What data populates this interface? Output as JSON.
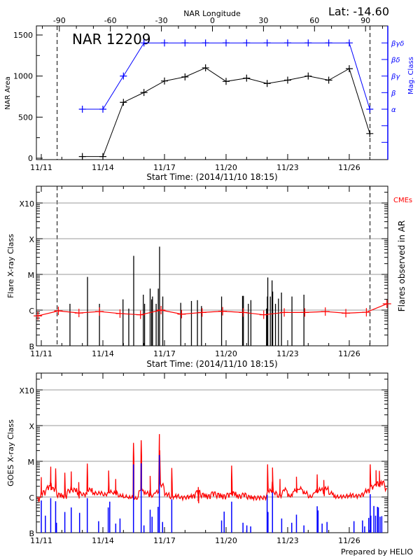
{
  "colors": {
    "axis": "#000000",
    "grid": "#999999",
    "nar_area": "#000000",
    "mag_class": "#0000ff",
    "cme": "#ff0000",
    "goes_long": "#ff0000",
    "goes_short": "#0000ff",
    "flare": "#000000"
  },
  "header": {
    "latitude": "Lat: -14.60",
    "region_title": "NAR 12209"
  },
  "footer": {
    "credit": "Prepared by HELIO"
  },
  "chart_data": [
    {
      "type": "line",
      "title": "NAR 12209",
      "xlabel": "Start Time: (2014/11/10 18:15)",
      "x_tick_labels": [
        "11/11",
        "11/14",
        "11/17",
        "11/20",
        "11/23",
        "11/26"
      ],
      "x_ticks": [
        "11/11 00:00",
        "11/14 00:00",
        "11/17 00:00",
        "11/20 00:00",
        "11/23 00:00",
        "11/26 00:00"
      ],
      "top_axis": {
        "label": "NAR Longitude",
        "ticks": [
          "-90",
          "-60",
          "-30",
          "0",
          "30",
          "60",
          "90"
        ]
      },
      "ylabel": "NAR Area",
      "yticks": [
        "0",
        "500",
        "1000",
        "1500"
      ],
      "ylim": [
        0,
        1600
      ],
      "y2label": "Mag. Class",
      "y2_tick_labels": [
        "α",
        "β",
        "βγ",
        "βδ",
        "βγδ"
      ],
      "limb_markers": [
        "11/11 18:30",
        "11/27 00:15"
      ],
      "series": [
        {
          "key": "area",
          "x": [
            "11/13 00:00",
            "11/14 00:00",
            "11/15 00:00",
            "11/16 00:00",
            "11/17 00:00",
            "11/18 00:00",
            "11/19 00:00",
            "11/20 00:00",
            "11/21 00:00",
            "11/22 00:00",
            "11/23 00:00",
            "11/24 00:00",
            "11/25 00:00",
            "11/26 00:00",
            "11/27 00:00"
          ],
          "values": [
            20,
            20,
            680,
            800,
            940,
            990,
            1100,
            935,
            975,
            910,
            950,
            1000,
            950,
            1090,
            300
          ]
        },
        {
          "key": "mag_class",
          "x": [
            "11/13 00:00",
            "11/14 00:00",
            "11/15 00:00",
            "11/16 00:00",
            "11/17 00:00",
            "11/18 00:00",
            "11/19 00:00",
            "11/20 00:00",
            "11/21 00:00",
            "11/22 00:00",
            "11/23 00:00",
            "11/24 00:00",
            "11/25 00:00",
            "11/26 00:00",
            "11/27 00:00"
          ],
          "values": [
            "α",
            "α",
            "βγ",
            "βγδ",
            "βγδ",
            "βγδ",
            "βγδ",
            "βγδ",
            "βγδ",
            "βγδ",
            "βγδ",
            "βγδ",
            "βγδ",
            "βγδ",
            "α"
          ]
        }
      ]
    },
    {
      "type": "bar",
      "xlabel": "Start Time: (2014/11/10 18:15)",
      "x_tick_labels": [
        "11/11",
        "11/14",
        "11/17",
        "11/20",
        "11/23",
        "11/26"
      ],
      "ylabel": "Flare X-ray Class",
      "y_scale": "log",
      "yticks": [
        "B",
        "C",
        "M",
        "X",
        "X10"
      ],
      "ytick_values": [
        1e-07,
        1e-06,
        1e-05,
        0.0001,
        0.001
      ],
      "grid": true,
      "y2label": "Flares observed in AR",
      "legend": {
        "label": "CMEs",
        "placement": "top-right"
      },
      "limb_markers": [
        "11/11 18:30",
        "11/27 00:15"
      ],
      "flares": [
        [
          "11/12 09:30",
          1.5e-06
        ],
        [
          "11/13 06:00",
          8.5e-06
        ],
        [
          "11/13 20:00",
          1.5e-06
        ],
        [
          "11/14 23:30",
          2e-06
        ],
        [
          "11/15 06:15",
          1.1e-06
        ],
        [
          "11/15 12:00",
          3.3e-05
        ],
        [
          "11/15 23:15",
          2.7e-06
        ],
        [
          "11/16 00:45",
          1.5e-06
        ],
        [
          "11/16 07:15",
          4e-06
        ],
        [
          "11/16 09:00",
          2e-06
        ],
        [
          "11/16 10:00",
          2.4e-06
        ],
        [
          "11/16 14:15",
          1.5e-06
        ],
        [
          "11/16 16:45",
          4e-06
        ],
        [
          "11/16 18:15",
          6e-05
        ],
        [
          "11/16 22:00",
          2.4e-06
        ],
        [
          "11/17 19:00",
          1.6e-06
        ],
        [
          "11/18 07:30",
          1.8e-06
        ],
        [
          "11/18 14:30",
          1.9e-06
        ],
        [
          "11/18 19:15",
          1.3e-06
        ],
        [
          "11/19 18:45",
          2.4e-06
        ],
        [
          "11/20 19:15",
          2.5e-06
        ],
        [
          "11/20 20:15",
          2.5e-06
        ],
        [
          "11/21 02:00",
          1.5e-06
        ],
        [
          "11/21 05:00",
          1.9e-06
        ],
        [
          "11/21 23:15",
          1.1e-06
        ],
        [
          "11/22 00:15",
          2.4e-06
        ],
        [
          "11/22 00:45",
          8.2e-06
        ],
        [
          "11/22 03:45",
          2.4e-06
        ],
        [
          "11/22 05:45",
          6.8e-06
        ],
        [
          "11/22 06:30",
          3.3e-06
        ],
        [
          "11/22 09:45",
          1.5e-06
        ],
        [
          "11/22 13:15",
          2.1e-06
        ],
        [
          "11/22 16:45",
          3.1e-06
        ],
        [
          "11/23 05:00",
          2.4e-06
        ],
        [
          "11/23 19:00",
          2.7e-06
        ]
      ],
      "cmes": {
        "x": [
          "11/10 20:00",
          "11/11 20:00",
          "11/12 20:00",
          "11/13 20:00",
          "11/14 20:00",
          "11/15 20:00",
          "11/16 20:00",
          "11/17 20:00",
          "11/18 20:00",
          "11/19 20:00",
          "11/20 20:00",
          "11/21 20:00",
          "11/22 20:00",
          "11/23 20:00",
          "11/24 20:00",
          "11/25 20:00",
          "11/26 20:00",
          "11/27 20:00"
        ],
        "values": [
          6.9e-07,
          9.5e-07,
          8.3e-07,
          9.1e-07,
          8e-07,
          7.4e-07,
          1e-06,
          7.7e-07,
          8.6e-07,
          9.3e-07,
          8.6e-07,
          7.4e-07,
          8.6e-07,
          8.6e-07,
          9.1e-07,
          8.2e-07,
          8.7e-07,
          1.5e-06
        ]
      }
    },
    {
      "type": "line",
      "ylabel": "GOES X-ray Class",
      "x_tick_labels": [
        "11/11",
        "11/14",
        "11/17",
        "11/20",
        "11/23",
        "11/26"
      ],
      "y_scale": "log",
      "yticks": [
        "B",
        "C",
        "M",
        "X",
        "X10"
      ],
      "ytick_values": [
        1e-07,
        1e-06,
        1e-05,
        0.0001,
        0.001
      ],
      "grid": true,
      "series": [
        {
          "key": "long_channel_background",
          "start": "11/10 18:15",
          "interval_hours": 6,
          "values": [
            8.5e-07,
            1.3e-06,
            1.8e-06,
            1.6e-06,
            1.1e-06,
            1e-06,
            1.4e-06,
            1.5e-06,
            1.2e-06,
            1.1e-06,
            1.5e-06,
            1.2e-06,
            1.2e-06,
            1.1e-06,
            1.3e-06,
            1.2e-06,
            1e-06,
            9.5e-07,
            9e-07,
            8.5e-07,
            1.5e-06,
            1.2e-06,
            1e-06,
            1.3e-06,
            2e-06,
            1.1e-06,
            9.5e-07,
            1e-06,
            9e-07,
            9.5e-07,
            1e-06,
            1.3e-06,
            1.1e-06,
            1e-06,
            1.2e-06,
            1.1e-06,
            1e-06,
            1.1e-06,
            1.2e-06,
            1e-06,
            1.1e-06,
            9.5e-07,
            9e-07,
            9e-07,
            9e-07,
            1.4e-06,
            1.2e-06,
            1e-06,
            1.5e-06,
            1e-06,
            1.4e-06,
            1.6e-06,
            1.2e-06,
            9.5e-07,
            1.3e-06,
            1.5e-06,
            1.6e-06,
            1.2e-06,
            9.5e-07,
            9.5e-07,
            1e-06,
            1.05e-06,
            1e-06,
            1.1e-06,
            1.4e-06,
            1.8e-06,
            2.3e-06,
            2.4e-06,
            1.5e-06
          ]
        },
        {
          "key": "long_channel_peaks",
          "points": [
            [
              "11/11 00:00",
              3.6e-06
            ],
            [
              "11/11 11:00",
              7.1e-06
            ],
            [
              "11/11 16:45",
              6.3e-06
            ],
            [
              "11/12 03:30",
              4.8e-06
            ],
            [
              "11/12 11:00",
              5.2e-06
            ],
            [
              "11/12 19:45",
              2.6e-06
            ],
            [
              "11/13 05:45",
              8.6e-06
            ],
            [
              "11/14 06:45",
              5.5e-06
            ],
            [
              "11/14 15:00",
              3.2e-06
            ],
            [
              "11/15 11:45",
              3.3e-05
            ],
            [
              "11/15 20:45",
              3.9e-05
            ],
            [
              "11/16 07:15",
              3.9e-06
            ],
            [
              "11/16 18:00",
              5.8e-05
            ],
            [
              "11/17 08:30",
              6.5e-06
            ],
            [
              "11/18 15:30",
              1.9e-06
            ],
            [
              "11/20 06:30",
              7.6e-06
            ],
            [
              "11/22 00:30",
              8.2e-06
            ],
            [
              "11/22 06:15",
              6.7e-06
            ],
            [
              "11/22 15:00",
              3.2e-06
            ],
            [
              "11/23 10:15",
              3.7e-06
            ],
            [
              "11/24 10:30",
              4.3e-06
            ],
            [
              "11/24 18:15",
              3e-06
            ],
            [
              "11/27 00:30",
              8.2e-06
            ],
            [
              "11/27 07:15",
              5.6e-06
            ],
            [
              "11/27 11:15",
              5.4e-06
            ]
          ]
        },
        {
          "key": "short_channel_peaks",
          "points": [
            [
              "11/11 00:00",
              8e-07
            ],
            [
              "11/11 04:45",
              3e-07
            ],
            [
              "11/11 11:00",
              9.3e-07
            ],
            [
              "11/11 16:45",
              7.6e-07
            ],
            [
              "11/11 17:45",
              1.9e-07
            ],
            [
              "11/12 03:30",
              3.8e-07
            ],
            [
              "11/12 11:00",
              5.1e-07
            ],
            [
              "11/12 20:45",
              3.6e-07
            ],
            [
              "11/13 05:45",
              9.3e-07
            ],
            [
              "11/13 19:00",
              2.1e-07
            ],
            [
              "11/14 06:15",
              5.1e-07
            ],
            [
              "11/14 08:00",
              7.4e-07
            ],
            [
              "11/14 15:00",
              1.8e-07
            ],
            [
              "11/14 20:00",
              2.5e-07
            ],
            [
              "11/15 11:45",
              8.2e-06
            ],
            [
              "11/15 20:45",
              8.8e-06
            ],
            [
              "11/16 00:00",
              1.6e-07
            ],
            [
              "11/16 07:15",
              4.4e-07
            ],
            [
              "11/16 09:30",
              2.8e-07
            ],
            [
              "11/16 16:30",
              5.3e-07
            ],
            [
              "11/16 18:00",
              1.5e-05
            ],
            [
              "11/16 21:45",
              2e-07
            ],
            [
              "11/17 08:30",
              8.6e-07
            ],
            [
              "11/19 18:45",
              2.2e-07
            ],
            [
              "11/19 21:45",
              3.9e-07
            ],
            [
              "11/20 06:30",
              7.4e-07
            ],
            [
              "11/20 19:45",
              1.9e-07
            ],
            [
              "11/21 00:15",
              1.6e-07
            ],
            [
              "11/21 04:45",
              1.5e-07
            ],
            [
              "11/22 00:00",
              1.16e-06
            ],
            [
              "11/22 01:00",
              3.8e-07
            ],
            [
              "11/22 06:15",
              1.35e-06
            ],
            [
              "11/22 17:00",
              2.5e-07
            ],
            [
              "11/23 04:45",
              1.9e-07
            ],
            [
              "11/23 10:15",
              3.2e-07
            ],
            [
              "11/23 19:00",
              1.6e-07
            ],
            [
              "11/24 10:30",
              5.5e-07
            ],
            [
              "11/24 11:30",
              4.2e-07
            ],
            [
              "11/24 16:15",
              1.8e-07
            ],
            [
              "11/24 22:00",
              2e-07
            ],
            [
              "11/26 05:30",
              2.1e-07
            ],
            [
              "11/26 15:30",
              2.2e-07
            ],
            [
              "11/26 18:00",
              1.5e-07
            ],
            [
              "11/26 22:45",
              2.6e-07
            ],
            [
              "11/27 00:30",
              1.2e-06
            ],
            [
              "11/27 01:15",
              3e-07
            ],
            [
              "11/27 04:45",
              5.6e-07
            ],
            [
              "11/27 06:45",
              3e-07
            ],
            [
              "11/27 09:00",
              5.3e-07
            ],
            [
              "11/27 10:00",
              5.1e-07
            ],
            [
              "11/27 12:00",
              2.8e-07
            ],
            [
              "11/27 14:00",
              2.9e-07
            ]
          ]
        }
      ]
    }
  ]
}
